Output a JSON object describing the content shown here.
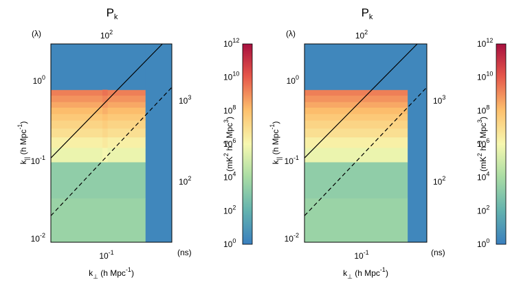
{
  "chart_data": [
    {
      "type": "heatmap",
      "panel": "left",
      "title": "P",
      "title_sub": "k",
      "xlabel": "k",
      "xlabel_sub": "⊥",
      "xlabel_rest": " (h Mpc",
      "xlabel_sup": "-1",
      "xlabel_close": ")",
      "ylabel": "k",
      "ylabel_sub": "||",
      "ylabel_rest": " (h Mpc",
      "ylabel_sup": "-1",
      "ylabel_close": ")",
      "top_axis_label": "(λ)",
      "top_tick_base": "10",
      "top_tick_exp": "2",
      "right_axis_label": "(ns)",
      "right_ticks": [
        {
          "base": "10",
          "exp": "3"
        },
        {
          "base": "10",
          "exp": "2"
        }
      ],
      "x_ticks": [
        {
          "base": "10",
          "exp": "-1"
        }
      ],
      "y_ticks": [
        {
          "base": "10",
          "exp": "0"
        },
        {
          "base": "10",
          "exp": "-1"
        },
        {
          "base": "10",
          "exp": "-2"
        }
      ],
      "colorbar_label": "(mK",
      "colorbar_label_sup1": "2",
      "colorbar_label_mid": " h",
      "colorbar_label_sup2": "-3",
      "colorbar_label_end": " Mpc",
      "colorbar_label_sup3": "3",
      "colorbar_label_close": ")",
      "colorbar_ticks": [
        {
          "base": "10",
          "exp": "12"
        },
        {
          "base": "10",
          "exp": "10"
        },
        {
          "base": "10",
          "exp": "8"
        },
        {
          "base": "10",
          "exp": "6"
        },
        {
          "base": "10",
          "exp": "4"
        },
        {
          "base": "10",
          "exp": "2"
        },
        {
          "base": "10",
          "exp": "0"
        }
      ],
      "colorbar_range_log10": [
        0,
        12
      ],
      "xlim_log10": [
        -1.72,
        -0.57
      ],
      "ylim_log10": [
        -2.05,
        0.42
      ],
      "data_kperp_max_log10": -0.82,
      "bands_log10_power": [
        {
          "k_par_log10": [
            -2.05,
            -1.5
          ],
          "value": 3.6
        },
        {
          "k_par_log10": [
            -1.5,
            -1.05
          ],
          "value": 3.3
        },
        {
          "k_par_log10": [
            -1.05,
            -0.87
          ],
          "value": 5.7
        },
        {
          "k_par_log10": [
            -0.87,
            -0.74
          ],
          "value": 6.3
        },
        {
          "k_par_log10": [
            -0.74,
            -0.63
          ],
          "value": 6.9
        },
        {
          "k_par_log10": [
            -0.63,
            -0.53
          ],
          "value": 7.3
        },
        {
          "k_par_log10": [
            -0.53,
            -0.45
          ],
          "value": 7.7
        },
        {
          "k_par_log10": [
            -0.45,
            -0.37
          ],
          "value": 8.1
        },
        {
          "k_par_log10": [
            -0.37,
            -0.3
          ],
          "value": 8.5
        },
        {
          "k_par_log10": [
            -0.3,
            -0.22
          ],
          "value": 8.9
        },
        {
          "k_par_log10": [
            -0.22,
            -0.15
          ],
          "value": 9.3
        },
        {
          "k_par_log10": [
            -0.15,
            0.42
          ],
          "value": 0.3
        }
      ],
      "stripe": {
        "k_perp_log10": [
          -1.23,
          -1.18
        ],
        "k_par_log10": [
          -1.05,
          -0.15
        ],
        "delta": 0.25
      },
      "lines": [
        {
          "style": "solid",
          "k_perp_log10": [
            -1.72,
            -0.66
          ],
          "k_par_log10": [
            -1.0,
            0.42
          ]
        },
        {
          "style": "dashed",
          "k_perp_log10": [
            -1.72,
            -0.57
          ],
          "k_par_log10": [
            -1.72,
            -0.12
          ]
        }
      ]
    },
    {
      "type": "heatmap",
      "panel": "right",
      "title": "P",
      "title_sub": "k",
      "xlabel": "k",
      "xlabel_sub": "⊥",
      "xlabel_rest": " (h Mpc",
      "xlabel_sup": "-1",
      "xlabel_close": ")",
      "ylabel": "k",
      "ylabel_sub": "||",
      "ylabel_rest": " (h Mpc",
      "ylabel_sup": "-1",
      "ylabel_close": ")",
      "top_axis_label": "(λ)",
      "top_tick_base": "10",
      "top_tick_exp": "2",
      "right_axis_label": "(ns)",
      "right_ticks": [
        {
          "base": "10",
          "exp": "3"
        },
        {
          "base": "10",
          "exp": "2"
        }
      ],
      "x_ticks": [
        {
          "base": "10",
          "exp": "-1"
        }
      ],
      "y_ticks": [
        {
          "base": "10",
          "exp": "0"
        },
        {
          "base": "10",
          "exp": "-1"
        },
        {
          "base": "10",
          "exp": "-2"
        }
      ],
      "colorbar_label": "(mK",
      "colorbar_label_sup1": "2",
      "colorbar_label_mid": " h",
      "colorbar_label_sup2": "-3",
      "colorbar_label_end": " Mpc",
      "colorbar_label_sup3": "3",
      "colorbar_label_close": ")",
      "colorbar_ticks": [
        {
          "base": "10",
          "exp": "12"
        },
        {
          "base": "10",
          "exp": "10"
        },
        {
          "base": "10",
          "exp": "8"
        },
        {
          "base": "10",
          "exp": "6"
        },
        {
          "base": "10",
          "exp": "4"
        },
        {
          "base": "10",
          "exp": "2"
        },
        {
          "base": "10",
          "exp": "0"
        }
      ],
      "colorbar_range_log10": [
        0,
        12
      ],
      "xlim_log10": [
        -1.72,
        -0.57
      ],
      "ylim_log10": [
        -2.05,
        0.42
      ],
      "data_kperp_max_log10": -0.75,
      "bands_log10_power": [
        {
          "k_par_log10": [
            -2.05,
            -1.5
          ],
          "value": 3.6
        },
        {
          "k_par_log10": [
            -1.5,
            -1.05
          ],
          "value": 3.3
        },
        {
          "k_par_log10": [
            -1.05,
            -0.87
          ],
          "value": 5.7
        },
        {
          "k_par_log10": [
            -0.87,
            -0.74
          ],
          "value": 6.3
        },
        {
          "k_par_log10": [
            -0.74,
            -0.63
          ],
          "value": 6.9
        },
        {
          "k_par_log10": [
            -0.63,
            -0.53
          ],
          "value": 7.3
        },
        {
          "k_par_log10": [
            -0.53,
            -0.45
          ],
          "value": 7.7
        },
        {
          "k_par_log10": [
            -0.45,
            -0.37
          ],
          "value": 8.1
        },
        {
          "k_par_log10": [
            -0.37,
            -0.3
          ],
          "value": 8.5
        },
        {
          "k_par_log10": [
            -0.3,
            -0.22
          ],
          "value": 8.9
        },
        {
          "k_par_log10": [
            -0.22,
            -0.15
          ],
          "value": 9.3
        },
        {
          "k_par_log10": [
            -0.15,
            0.42
          ],
          "value": 0.3
        }
      ],
      "stripe": null,
      "lines": [
        {
          "style": "solid",
          "k_perp_log10": [
            -1.72,
            -0.66
          ],
          "k_par_log10": [
            -1.0,
            0.42
          ]
        },
        {
          "style": "dashed",
          "k_perp_log10": [
            -1.72,
            -0.57
          ],
          "k_par_log10": [
            -1.72,
            -0.12
          ]
        }
      ]
    }
  ]
}
